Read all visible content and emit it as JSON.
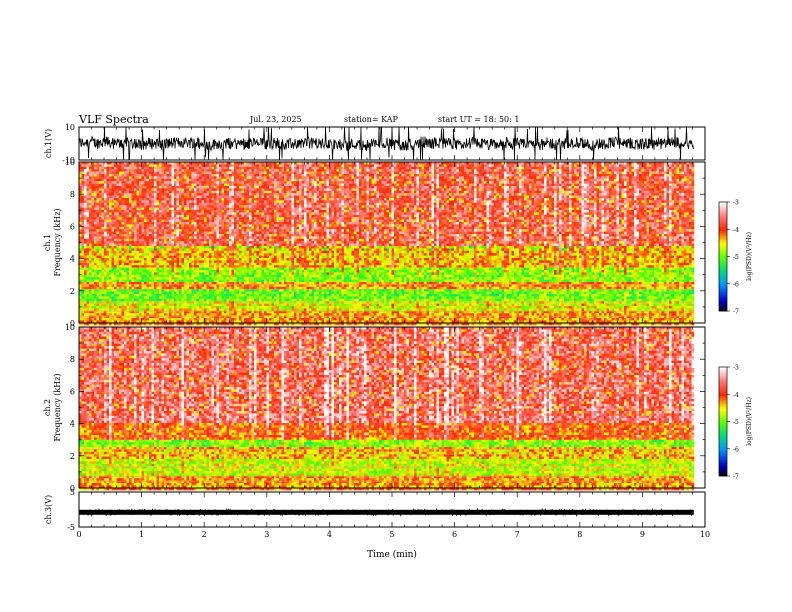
{
  "header": {
    "title": "VLF Spectra",
    "date": "Jul. 23, 2025",
    "station": "station= KAP",
    "start_ut": "start UT =   18: 50: 1"
  },
  "chart_data": [
    {
      "type": "line",
      "panel": "ch1-waveform",
      "ylabel": "ch.1(V)",
      "ylim": [
        -10,
        10
      ],
      "yticks": [
        "10",
        "-10"
      ]
    },
    {
      "type": "heatmap",
      "panel": "ch1-spectrogram",
      "ylabel_top": "ch.1",
      "ylabel": "Frequency (kHz)",
      "ylim": [
        0,
        10
      ],
      "yticks": [
        "0",
        "2",
        "4",
        "6",
        "8",
        "10"
      ],
      "colorbar": {
        "label": "log(PSD)(V²/Hz)",
        "ticks": [
          "-3",
          "-4",
          "-5",
          "-6",
          "-7"
        ],
        "range": [
          -7,
          -3
        ]
      },
      "bands": [
        {
          "from": 0.0,
          "to": 0.8,
          "level": -4.3
        },
        {
          "from": 0.8,
          "to": 1.4,
          "level": -4.6
        },
        {
          "from": 1.4,
          "to": 2.1,
          "level": -5.0
        },
        {
          "from": 2.1,
          "to": 2.5,
          "level": -4.3
        },
        {
          "from": 2.5,
          "to": 3.5,
          "level": -4.9
        },
        {
          "from": 3.5,
          "to": 4.8,
          "level": -4.4
        },
        {
          "from": 4.8,
          "to": 10.0,
          "level": -3.7
        }
      ]
    },
    {
      "type": "heatmap",
      "panel": "ch2-spectrogram",
      "ylabel_top": "ch.2",
      "ylabel": "Frequency (kHz)",
      "ylim": [
        0,
        10
      ],
      "yticks": [
        "0",
        "2",
        "4",
        "6",
        "8",
        "10"
      ],
      "colorbar": {
        "label": "log(PSD)(V²/Hz)",
        "ticks": [
          "-3",
          "-4",
          "-5",
          "-6",
          "-7"
        ],
        "range": [
          -7,
          -3
        ]
      },
      "bands": [
        {
          "from": 0.0,
          "to": 0.8,
          "level": -4.3
        },
        {
          "from": 0.8,
          "to": 1.8,
          "level": -4.7
        },
        {
          "from": 1.8,
          "to": 2.6,
          "level": -4.4
        },
        {
          "from": 2.6,
          "to": 3.0,
          "level": -4.9
        },
        {
          "from": 3.0,
          "to": 4.0,
          "level": -4.1
        },
        {
          "from": 4.0,
          "to": 10.0,
          "level": -3.6
        }
      ]
    },
    {
      "type": "line",
      "panel": "ch3-waveform",
      "ylabel": "ch.3(V)",
      "ylim": [
        -5,
        5
      ],
      "yticks": [
        "5",
        "-5"
      ],
      "level": -0.8
    }
  ],
  "xaxis": {
    "label": "Time (min)",
    "ticks": [
      "0",
      "1",
      "2",
      "3",
      "4",
      "5",
      "6",
      "7",
      "8",
      "9",
      "10"
    ],
    "range": [
      0,
      10
    ],
    "data_end": 9.82
  }
}
